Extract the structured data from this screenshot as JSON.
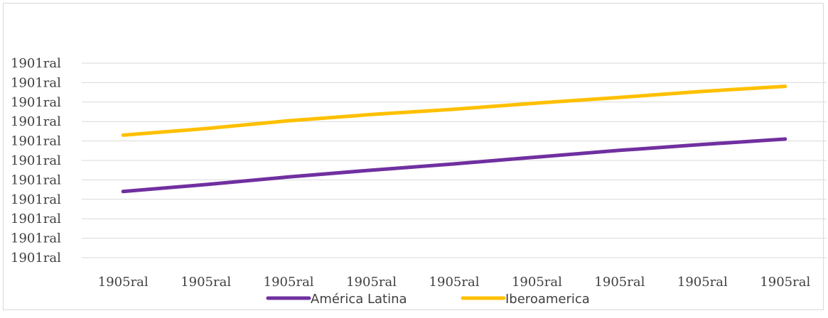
{
  "chart_data": {
    "type": "line",
    "title": "",
    "xlabel": "",
    "ylabel": "",
    "categories": [
      "1905ral",
      "1905ral",
      "1905ral",
      "1905ral",
      "1905ral",
      "1905ral",
      "1905ral",
      "1905ral",
      "1905ral"
    ],
    "y_tick_labels": [
      "1901ral",
      "1901ral",
      "1901ral",
      "1901ral",
      "1901ral",
      "1901ral",
      "1901ral",
      "1901ral",
      "1901ral",
      "1901ral",
      "1901ral"
    ],
    "ylim": [
      0,
      10
    ],
    "grid": true,
    "legend_position": "bottom",
    "series": [
      {
        "name": "América Latina",
        "color": "#7030A0",
        "values": [
          3.4,
          3.76,
          4.15,
          4.5,
          4.82,
          5.17,
          5.52,
          5.82,
          6.1
        ]
      },
      {
        "name": "Iberoamerica",
        "color": "#FFC000",
        "values": [
          6.3,
          6.64,
          7.04,
          7.36,
          7.63,
          7.95,
          8.24,
          8.55,
          8.81
        ]
      }
    ]
  }
}
